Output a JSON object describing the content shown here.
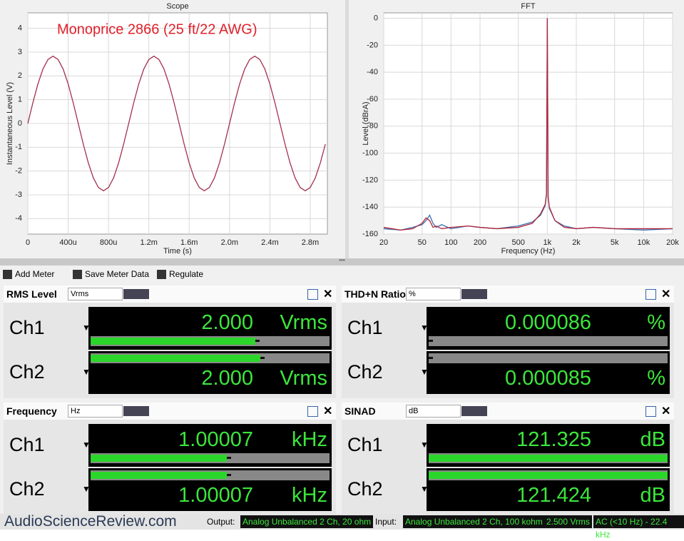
{
  "chart_data": [
    {
      "type": "line",
      "title": "Scope",
      "annotation": "Monoprice 2866 (25 ft/22 AWG)",
      "x_label": "Time (s)",
      "y_label": "Instantaneous Level (V)",
      "color": "#a3304c",
      "grid": true,
      "x": [
        0,
        5e-05,
        0.0001,
        0.00015,
        0.0002,
        0.00025,
        0.0003,
        0.00035,
        0.0004,
        0.00045,
        0.0005,
        0.00055,
        0.0006,
        0.00065,
        0.0007,
        0.00075,
        0.0008,
        0.00085,
        0.0009,
        0.00095,
        0.001,
        0.00105,
        0.0011,
        0.00115,
        0.0012,
        0.00125,
        0.0013,
        0.00135,
        0.0014,
        0.00145,
        0.0015,
        0.00155,
        0.0016,
        0.00165,
        0.0017,
        0.00175,
        0.0018,
        0.00185,
        0.0019,
        0.00195,
        0.002,
        0.00205,
        0.0021,
        0.00215,
        0.0022,
        0.00225,
        0.0023,
        0.00235,
        0.0024,
        0.00245,
        0.0025,
        0.00255,
        0.0026,
        0.00265,
        0.0027,
        0.00275,
        0.0028,
        0.00285,
        0.0029,
        0.00295
      ],
      "values": [
        0,
        0.87,
        1.66,
        2.29,
        2.69,
        2.83,
        2.69,
        2.29,
        1.66,
        0.87,
        0,
        -0.87,
        -1.66,
        -2.29,
        -2.69,
        -2.83,
        -2.69,
        -2.29,
        -1.66,
        -0.87,
        0,
        0.87,
        1.66,
        2.29,
        2.69,
        2.83,
        2.69,
        2.29,
        1.66,
        0.87,
        0,
        -0.87,
        -1.66,
        -2.29,
        -2.69,
        -2.83,
        -2.69,
        -2.29,
        -1.66,
        -0.87,
        0,
        0.87,
        1.66,
        2.29,
        2.69,
        2.83,
        2.69,
        2.29,
        1.66,
        0.87,
        0,
        -0.87,
        -1.66,
        -2.29,
        -2.69,
        -2.83,
        -2.69,
        -2.29,
        -1.66,
        -0.87
      ],
      "xlim": [
        0,
        0.00297
      ],
      "xticks": [
        0,
        {
          "value": 0.0004,
          "label": "400u"
        },
        {
          "value": 0.0008,
          "label": "800u"
        },
        {
          "value": 0.0012,
          "label": "1.2m"
        },
        {
          "value": 0.0016,
          "label": "1.6m"
        },
        {
          "value": 0.002,
          "label": "2.0m"
        },
        {
          "value": 0.0024,
          "label": "2.4m"
        },
        {
          "value": 0.0028,
          "label": "2.8m"
        }
      ],
      "ylim": [
        -4.65,
        4.65
      ],
      "yticks": [
        4,
        3,
        2,
        1,
        0,
        -1,
        -2,
        -3,
        -4
      ]
    },
    {
      "type": "line",
      "title": "FFT",
      "x_label": "Frequency (Hz)",
      "y_label": "Level (dBrA)",
      "xscale": "log",
      "grid": true,
      "x": [
        20,
        30,
        40,
        50,
        55,
        60,
        65,
        70,
        80,
        100,
        150,
        200,
        300,
        500,
        700,
        850,
        950,
        980,
        1000,
        1020,
        1050,
        1200,
        1500,
        2000,
        3000,
        5000,
        10000,
        20000
      ],
      "series": [
        {
          "color": "#3a6fb0",
          "values": [
            -156,
            -157,
            -155,
            -153,
            -150,
            -146,
            -152,
            -155,
            -153,
            -156,
            -154,
            -155,
            -156,
            -154,
            -151,
            -146,
            -139,
            -131,
            0,
            -133,
            -141,
            -150,
            -154,
            -156,
            -155,
            -156,
            -157,
            -156
          ]
        },
        {
          "color": "#b0283c",
          "values": [
            -155,
            -157,
            -156,
            -152,
            -148,
            -150,
            -155,
            -154,
            -156,
            -155,
            -154,
            -155,
            -156,
            -155,
            -152,
            -145,
            -138,
            -130,
            0,
            -132,
            -140,
            -150,
            -155,
            -156,
            -155,
            -156,
            -156,
            -156
          ]
        }
      ],
      "xlim": [
        20,
        20000
      ],
      "xticks": [
        20,
        50,
        100,
        200,
        500,
        {
          "value": 1000,
          "label": "1k"
        },
        {
          "value": 2000,
          "label": "2k"
        },
        {
          "value": 5000,
          "label": "5k"
        },
        {
          "value": 10000,
          "label": "10k"
        },
        {
          "value": 20000,
          "label": "20k"
        }
      ],
      "ylim": [
        -160,
        4
      ],
      "yticks": [
        0,
        -20,
        -40,
        -60,
        -80,
        -100,
        -120,
        -140,
        -160
      ]
    }
  ],
  "toolbar": {
    "buttons": [
      "Add Meter",
      "Save Meter Data",
      "Regulate"
    ]
  },
  "meters": [
    {
      "title": "RMS Level",
      "unit_select": "Vrms",
      "channels": [
        {
          "label": "Ch1",
          "value": "2.000",
          "unit": "Vrms"
        },
        {
          "label": "Ch2",
          "value": "2.000",
          "unit": "Vrms"
        }
      ]
    },
    {
      "title": "THD+N Ratio",
      "unit_select": "%",
      "channels": [
        {
          "label": "Ch1",
          "value": "0.000086",
          "unit": "%"
        },
        {
          "label": "Ch2",
          "value": "0.000085",
          "unit": "%"
        }
      ]
    },
    {
      "title": "Frequency",
      "unit_select": "Hz",
      "channels": [
        {
          "label": "Ch1",
          "value": "1.00007",
          "unit": "kHz"
        },
        {
          "label": "Ch2",
          "value": "1.00007",
          "unit": "kHz"
        }
      ]
    },
    {
      "title": "SINAD",
      "unit_select": "dB",
      "channels": [
        {
          "label": "Ch1",
          "value": "121.325",
          "unit": "dB"
        },
        {
          "label": "Ch2",
          "value": "121.424",
          "unit": "dB"
        }
      ]
    }
  ],
  "status": {
    "brand": "AudioScienceReview.com",
    "output_label": "Output:",
    "output": "Analog Unbalanced 2 Ch, 20 ohm",
    "input_label": "Input:",
    "input": "Analog Unbalanced 2 Ch, 100 kohm",
    "level": "2.500 Vrms",
    "bandwidth": "AC (<10 Hz) - 22.4 kHz"
  }
}
